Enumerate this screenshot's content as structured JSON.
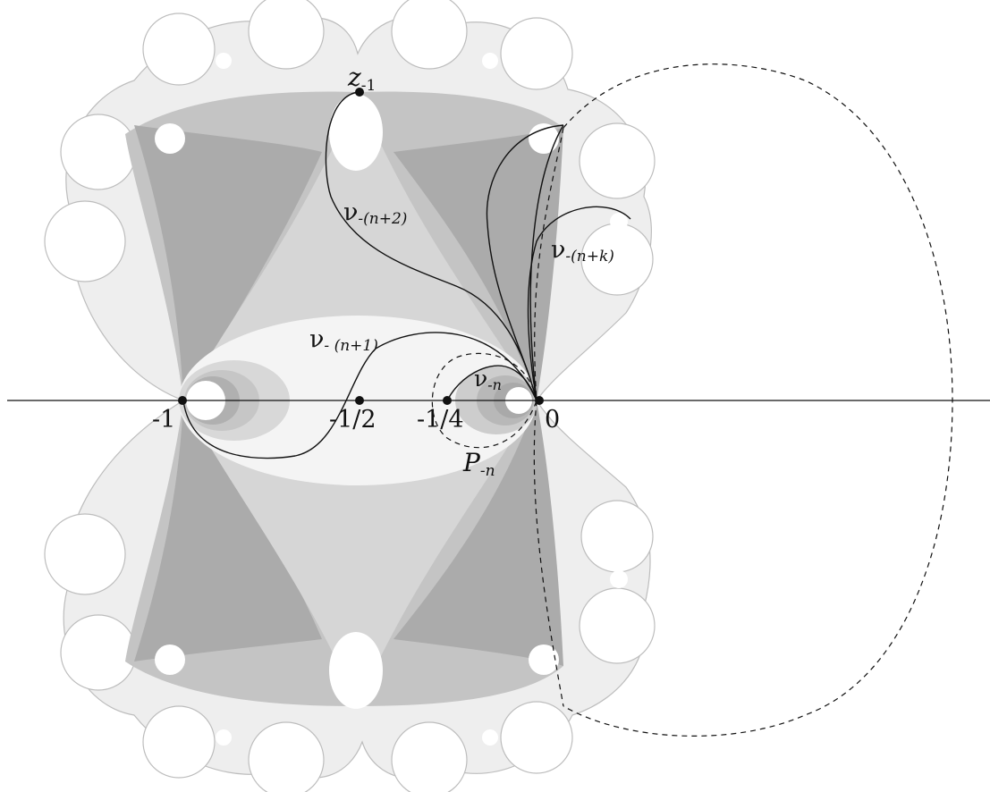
{
  "figure": {
    "axis_labels": {
      "neg_one": "-1",
      "neg_half": "-1/2",
      "neg_quarter": "-1/4",
      "zero": "0"
    },
    "points": {
      "z1": {
        "main": "z",
        "sub": "-1"
      },
      "p_n": {
        "main": "P",
        "sub": "-n"
      }
    },
    "curves": {
      "nu_n2": {
        "main": "ν",
        "sub": "-(n+2)"
      },
      "nu_nk": {
        "main": "ν",
        "sub": "-(n+k)"
      },
      "nu_n1": {
        "main": "ν",
        "sub": "- (n+1)"
      },
      "nu_n": {
        "main": "ν",
        "sub": "-n"
      }
    },
    "colors": {
      "outer_region": "#f2f2f2",
      "region_light": "#d0d0d0",
      "region_mid": "#b9b9b9",
      "region_dark": "#a9a9a9",
      "inner_ellipse": "#f4f4f4",
      "curve": "#111111"
    }
  }
}
